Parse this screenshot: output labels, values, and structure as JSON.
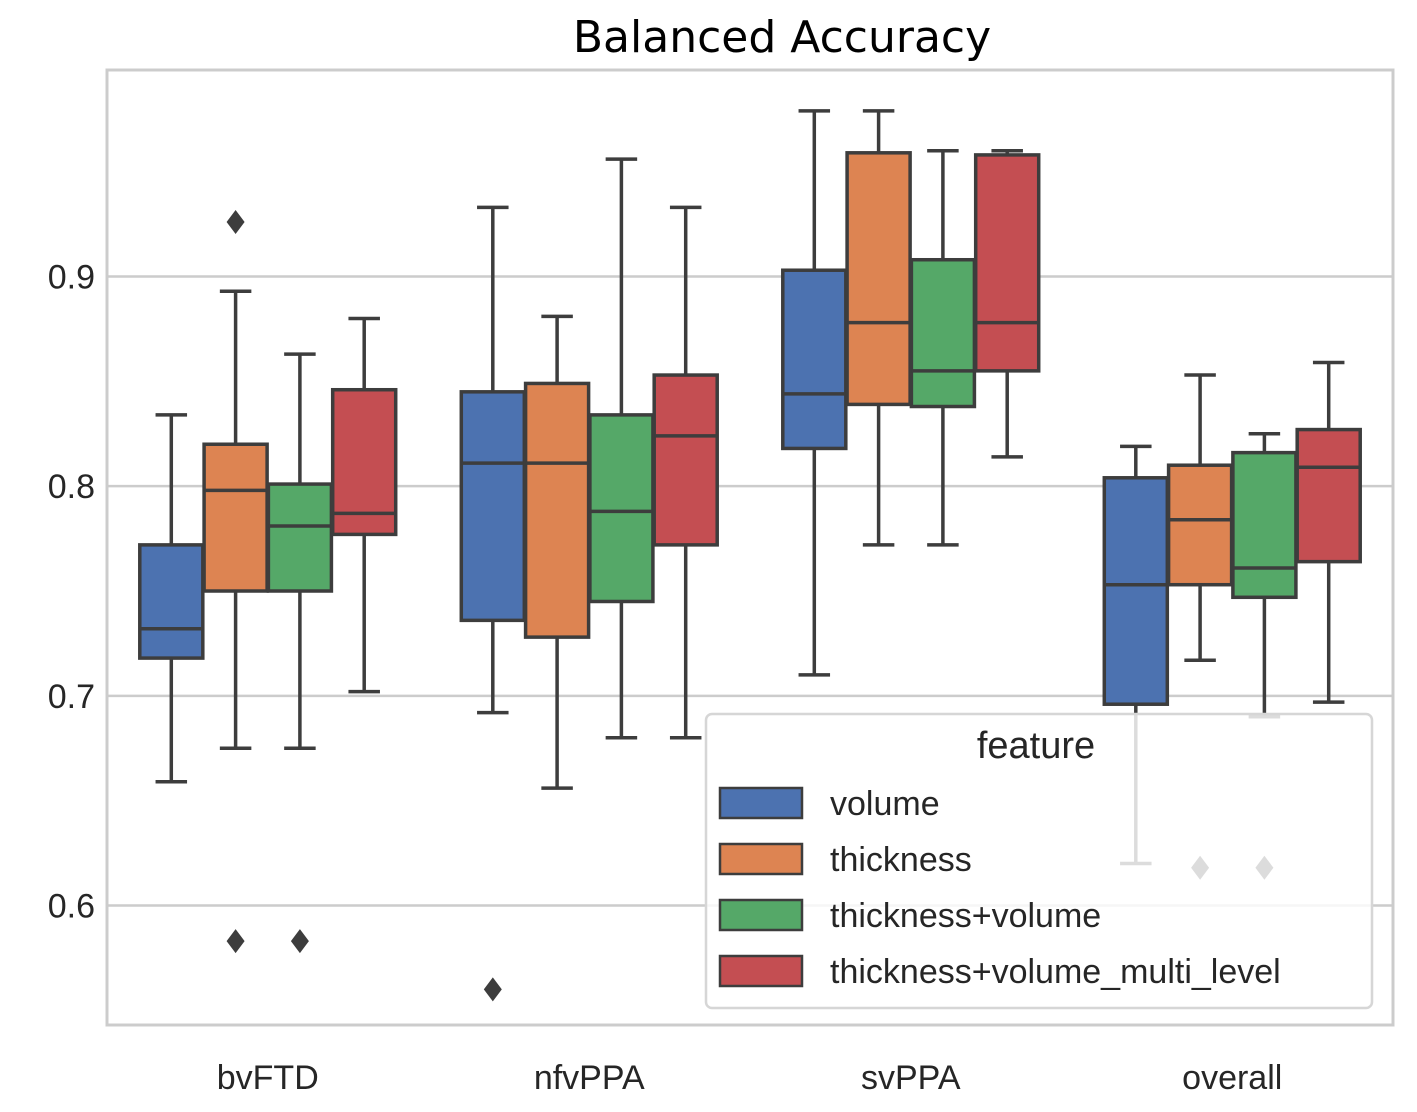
{
  "chart_data": {
    "type": "box",
    "title": "Balanced Accuracy",
    "xlabel": "",
    "ylabel": "",
    "ylim": [
      0.543,
      0.9985
    ],
    "yticks": [
      0.6,
      0.7,
      0.8,
      0.9
    ],
    "ytick_labels": [
      "0.6",
      "0.7",
      "0.8",
      "0.9"
    ],
    "grid": true,
    "categories": [
      "bvFTD",
      "nfvPPA",
      "svPPA",
      "overall"
    ],
    "legend": {
      "title": "feature",
      "placement": "lower-right",
      "entries": [
        "volume",
        "thickness",
        "thickness+volume",
        "thickness+volume_multi_level"
      ]
    },
    "series": [
      {
        "name": "volume",
        "color": "#4c72b0",
        "boxes": [
          {
            "whislo": 0.659,
            "q1": 0.718,
            "med": 0.732,
            "q3": 0.772,
            "whishi": 0.834,
            "fliers": []
          },
          {
            "whislo": 0.692,
            "q1": 0.736,
            "med": 0.811,
            "q3": 0.845,
            "whishi": 0.933,
            "fliers": [
              0.56
            ]
          },
          {
            "whislo": 0.71,
            "q1": 0.818,
            "med": 0.844,
            "q3": 0.903,
            "whishi": 0.979,
            "fliers": []
          },
          {
            "whislo": 0.62,
            "q1": 0.696,
            "med": 0.753,
            "q3": 0.804,
            "whishi": 0.819,
            "fliers": []
          }
        ]
      },
      {
        "name": "thickness",
        "color": "#dd8452",
        "boxes": [
          {
            "whislo": 0.675,
            "q1": 0.75,
            "med": 0.798,
            "q3": 0.82,
            "whishi": 0.893,
            "fliers": [
              0.926,
              0.583
            ]
          },
          {
            "whislo": 0.656,
            "q1": 0.728,
            "med": 0.811,
            "q3": 0.849,
            "whishi": 0.881,
            "fliers": []
          },
          {
            "whislo": 0.772,
            "q1": 0.839,
            "med": 0.878,
            "q3": 0.959,
            "whishi": 0.979,
            "fliers": []
          },
          {
            "whislo": 0.717,
            "q1": 0.753,
            "med": 0.784,
            "q3": 0.81,
            "whishi": 0.853,
            "fliers": [
              0.618
            ]
          }
        ]
      },
      {
        "name": "thickness+volume",
        "color": "#55a868",
        "boxes": [
          {
            "whislo": 0.675,
            "q1": 0.75,
            "med": 0.781,
            "q3": 0.801,
            "whishi": 0.863,
            "fliers": [
              0.583
            ]
          },
          {
            "whislo": 0.68,
            "q1": 0.745,
            "med": 0.788,
            "q3": 0.834,
            "whishi": 0.956,
            "fliers": []
          },
          {
            "whislo": 0.772,
            "q1": 0.838,
            "med": 0.855,
            "q3": 0.908,
            "whishi": 0.96,
            "fliers": []
          },
          {
            "whislo": 0.69,
            "q1": 0.747,
            "med": 0.761,
            "q3": 0.816,
            "whishi": 0.825,
            "fliers": [
              0.618
            ]
          }
        ]
      },
      {
        "name": "thickness+volume_multi_level",
        "color": "#c44e52",
        "boxes": [
          {
            "whislo": 0.702,
            "q1": 0.777,
            "med": 0.787,
            "q3": 0.846,
            "whishi": 0.88,
            "fliers": []
          },
          {
            "whislo": 0.68,
            "q1": 0.772,
            "med": 0.824,
            "q3": 0.853,
            "whishi": 0.933,
            "fliers": []
          },
          {
            "whislo": 0.814,
            "q1": 0.855,
            "med": 0.878,
            "q3": 0.958,
            "whishi": 0.96,
            "fliers": []
          },
          {
            "whislo": 0.697,
            "q1": 0.764,
            "med": 0.809,
            "q3": 0.827,
            "whishi": 0.859,
            "fliers": []
          }
        ]
      }
    ]
  }
}
